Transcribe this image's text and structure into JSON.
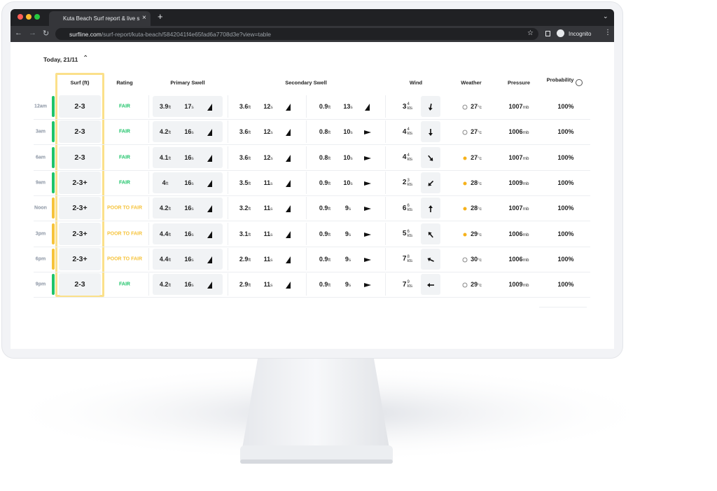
{
  "browser": {
    "tab_title": "Kuta Beach Surf report & live s",
    "url_domain": "surfline.com",
    "url_path": "/surf-report/kuta-beach/5842041f4e65fad6a7708d3e?view=table",
    "profile": "Incognito"
  },
  "table": {
    "date_label": "Today, 21/11",
    "headers": {
      "surf": "Surf (ft)",
      "rating": "Rating",
      "primary": "Primary Swell",
      "secondary": "Secondary Swell",
      "wind": "Wind",
      "weather": "Weather",
      "pressure": "Pressure",
      "probability": "Probability"
    },
    "units": {
      "height": "ft",
      "period": "s",
      "wind": "kts",
      "temp": "°c",
      "pressure": "mb"
    },
    "rows": [
      {
        "time": "12am",
        "surf": "2-3",
        "rating": "FAIR",
        "color": "#1fc46a",
        "primary": {
          "height": 3.9,
          "period": 17
        },
        "secondary": {
          "height": 3.6,
          "period": 12
        },
        "tertiary": {
          "height": 0.9,
          "period": 13
        },
        "wind": {
          "speed": 3,
          "gust": 4
        },
        "temp": 27,
        "pressure": 1007,
        "probability": "100%"
      },
      {
        "time": "3am",
        "surf": "2-3",
        "rating": "FAIR",
        "color": "#1fc46a",
        "primary": {
          "height": 4.2,
          "period": 16
        },
        "secondary": {
          "height": 3.6,
          "period": 12
        },
        "tertiary": {
          "height": 0.8,
          "period": 10
        },
        "wind": {
          "speed": 4,
          "gust": 4
        },
        "temp": 27,
        "pressure": 1006,
        "probability": "100%"
      },
      {
        "time": "6am",
        "surf": "2-3",
        "rating": "FAIR",
        "color": "#1fc46a",
        "primary": {
          "height": 4.1,
          "period": 16
        },
        "secondary": {
          "height": 3.6,
          "period": 12
        },
        "tertiary": {
          "height": 0.8,
          "period": 10
        },
        "wind": {
          "speed": 4,
          "gust": 4
        },
        "temp": 27,
        "pressure": 1007,
        "probability": "100%"
      },
      {
        "time": "9am",
        "surf": "2-3+",
        "rating": "FAIR",
        "color": "#1fc46a",
        "primary": {
          "height": 4,
          "period": 16
        },
        "secondary": {
          "height": 3.5,
          "period": 11
        },
        "tertiary": {
          "height": 0.9,
          "period": 10
        },
        "wind": {
          "speed": 2,
          "gust": 3
        },
        "temp": 28,
        "pressure": 1009,
        "probability": "100%"
      },
      {
        "time": "Noon",
        "surf": "2-3+",
        "rating": "POOR TO FAIR",
        "color": "#f6c33a",
        "primary": {
          "height": 4.2,
          "period": 16
        },
        "secondary": {
          "height": 3.2,
          "period": 11
        },
        "tertiary": {
          "height": 0.9,
          "period": 9
        },
        "wind": {
          "speed": 6,
          "gust": 6
        },
        "temp": 28,
        "pressure": 1007,
        "probability": "100%"
      },
      {
        "time": "3pm",
        "surf": "2-3+",
        "rating": "POOR TO FAIR",
        "color": "#f6c33a",
        "primary": {
          "height": 4.4,
          "period": 16
        },
        "secondary": {
          "height": 3.1,
          "period": 11
        },
        "tertiary": {
          "height": 0.9,
          "period": 9
        },
        "wind": {
          "speed": 5,
          "gust": 6
        },
        "temp": 29,
        "pressure": 1006,
        "probability": "100%"
      },
      {
        "time": "6pm",
        "surf": "2-3+",
        "rating": "POOR TO FAIR",
        "color": "#f6c33a",
        "primary": {
          "height": 4.4,
          "period": 16
        },
        "secondary": {
          "height": 2.9,
          "period": 11
        },
        "tertiary": {
          "height": 0.9,
          "period": 9
        },
        "wind": {
          "speed": 7,
          "gust": 8
        },
        "temp": 30,
        "pressure": 1006,
        "probability": "100%"
      },
      {
        "time": "9pm",
        "surf": "2-3",
        "rating": "FAIR",
        "color": "#1fc46a",
        "primary": {
          "height": 4.2,
          "period": 16
        },
        "secondary": {
          "height": 2.9,
          "period": 11
        },
        "tertiary": {
          "height": 0.9,
          "period": 9
        },
        "wind": {
          "speed": 7,
          "gust": 9
        },
        "temp": 29,
        "pressure": 1009,
        "probability": "100%"
      }
    ]
  }
}
